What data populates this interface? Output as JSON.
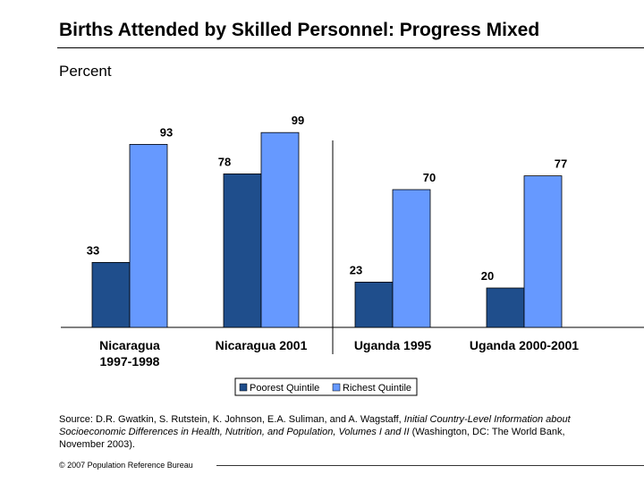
{
  "title": "Births Attended by Skilled Personnel: Progress Mixed",
  "unit_label": "Percent",
  "chart_data": {
    "type": "bar",
    "categories": [
      "Nicaragua 1997-1998",
      "Nicaragua 2001",
      "Uganda 1995",
      "Uganda 2000-2001"
    ],
    "category_lines": [
      [
        "Nicaragua",
        "1997-1998"
      ],
      [
        "Nicaragua 2001"
      ],
      [
        "Uganda 1995"
      ],
      [
        "Uganda 2000-2001"
      ]
    ],
    "series": [
      {
        "name": "Poorest Quintile",
        "values": [
          33,
          78,
          23,
          20
        ],
        "color": "#1F4E8C"
      },
      {
        "name": "Richest Quintile",
        "values": [
          93,
          99,
          70,
          77
        ],
        "color": "#6699FF"
      }
    ],
    "ylim": [
      0,
      110
    ],
    "legend_position": "bottom",
    "grid": false
  },
  "source": {
    "prefix": "Source: D.R. Gwatkin, S. Rutstein, K. Johnson, E.A. Suliman, and A. Wagstaff, ",
    "italic": "Initial Country-Level Information about Socioeconomic Differences in Health, Nutrition, and Population, Volumes I and II",
    "suffix": " (Washington, DC: The World Bank, November 2003)."
  },
  "copyright": "© 2007 Population Reference Bureau"
}
